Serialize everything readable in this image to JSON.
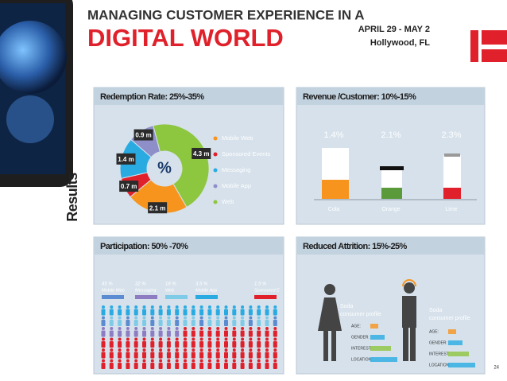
{
  "header": {
    "title_line1": "MANAGING CUSTOMER EXPERIENCE IN A",
    "title_line2": "DIGITAL WORLD",
    "date": "APRIL 29 - MAY 2",
    "location": "Hollywood, FL"
  },
  "section_label": "Results",
  "redemption": {
    "title": "Redemption Rate: 25%-35%",
    "center": "%",
    "segments": [
      {
        "name": "Mobile Web",
        "value": 2.1,
        "label": "2.1 m",
        "color": "#f7941d"
      },
      {
        "name": "Sponsored Events",
        "value": 0.7,
        "label": "0.7 m",
        "color": "#e0202a"
      },
      {
        "name": "Messaging",
        "value": 1.4,
        "label": "1.4 m",
        "color": "#29abe2"
      },
      {
        "name": "Mobile App",
        "value": 0.9,
        "label": "0.9 m",
        "color": "#8e8fc9"
      },
      {
        "name": "Web",
        "value": 4.3,
        "label": "4.3 m",
        "color": "#8dc63f"
      }
    ]
  },
  "revenue": {
    "title": "Revenue /Customer: 10%-15%",
    "items": [
      {
        "name": "Cola",
        "pct": "1.4%"
      },
      {
        "name": "Orange",
        "pct": "2.1%"
      },
      {
        "name": "Lime",
        "pct": "2.3%"
      }
    ]
  },
  "participation": {
    "title": "Participation: 50% -70%",
    "groups": [
      {
        "pct": "45 %",
        "name": "Mobile Web",
        "color": "#5b8bd0"
      },
      {
        "pct": "32 %",
        "name": "Messaging",
        "color": "#8e7cc3"
      },
      {
        "pct": "18 %",
        "name": "Web",
        "color": "#7ecbe8"
      },
      {
        "pct": "3.5 %",
        "name": "Mobile App",
        "color": "#29abe2"
      },
      {
        "pct": "1.5 %",
        "name": "Sponsored E",
        "color": "#e0202a"
      }
    ]
  },
  "attrition": {
    "title": "Reduced Attrition: 15%-25%",
    "profiles": [
      {
        "caption": [
          "Soda",
          "consumer profile"
        ],
        "fields": [
          "AGE:",
          "GENDER:",
          "INTEREST:",
          "LOCATION:"
        ]
      },
      {
        "caption": [
          "Soda",
          "consumer profile"
        ],
        "fields": [
          "AGE:",
          "GENDER:",
          "INTEREST:",
          "LOCATION:"
        ]
      }
    ]
  },
  "page_number": "24"
}
